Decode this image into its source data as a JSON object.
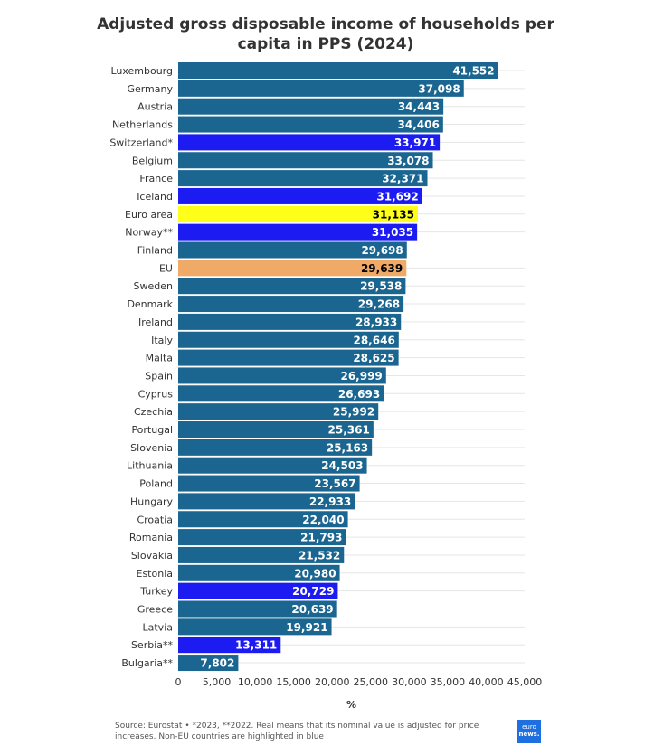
{
  "chart_data": {
    "type": "bar",
    "orientation": "horizontal",
    "title": "Adjusted gross disposable income of households per capita in PPS (2024)",
    "xlabel": "%",
    "ylabel": "",
    "xlim": [
      0,
      45000
    ],
    "xticks": [
      "0",
      "5,000",
      "10,000",
      "15,000",
      "20,000",
      "25,000",
      "30,000",
      "35,000",
      "40,000",
      "45,000"
    ],
    "grid": true,
    "categories": [
      "Luxembourg",
      "Germany",
      "Austria",
      "Netherlands",
      "Switzerland*",
      "Belgium",
      "France",
      "Iceland",
      "Euro area",
      "Norway**",
      "Finland",
      "EU",
      "Sweden",
      "Denmark",
      "Ireland",
      "Italy",
      "Malta",
      "Spain",
      "Cyprus",
      "Czechia",
      "Portugal",
      "Slovenia",
      "Lithuania",
      "Poland",
      "Hungary",
      "Croatia",
      "Romania",
      "Slovakia",
      "Estonia",
      "Turkey",
      "Greece",
      "Latvia",
      "Serbia**",
      "Bulgaria**"
    ],
    "values": [
      41552,
      37098,
      34443,
      34406,
      33971,
      33078,
      32371,
      31692,
      31135,
      31035,
      29698,
      29639,
      29538,
      29268,
      28933,
      28646,
      28625,
      26999,
      26693,
      25992,
      25361,
      25163,
      24503,
      23567,
      22933,
      22040,
      21793,
      21532,
      20980,
      20729,
      20639,
      19921,
      13311,
      7802
    ],
    "labels": [
      "41,552",
      "37,098",
      "34,443",
      "34,406",
      "33,971",
      "33,078",
      "32,371",
      "31,692",
      "31,135",
      "31,035",
      "29,698",
      "29,639",
      "29,538",
      "29,268",
      "28,933",
      "28,646",
      "28,625",
      "26,999",
      "26,693",
      "25,992",
      "25,361",
      "25,163",
      "24,503",
      "23,567",
      "22,933",
      "22,040",
      "21,793",
      "21,532",
      "20,980",
      "20,729",
      "20,639",
      "19,921",
      "13,311",
      "7,802"
    ],
    "highlight": {
      "Switzerland*": "non-eu",
      "Iceland": "non-eu",
      "Norway**": "non-eu",
      "Turkey": "non-eu",
      "Serbia**": "non-eu",
      "Euro area": "euro",
      "EU": "eu"
    },
    "colors": {
      "default": "#1b6690",
      "non-eu": "#1c1cf2",
      "euro": "#ffff1a",
      "eu": "#f0aa68"
    }
  },
  "source": "Source: Eurostat • *2023, **2022. Real means that its nominal value is adjusted for price increases. Non-EU countries are highlighted in blue",
  "logo": {
    "line1": "euro",
    "line2": "news."
  }
}
